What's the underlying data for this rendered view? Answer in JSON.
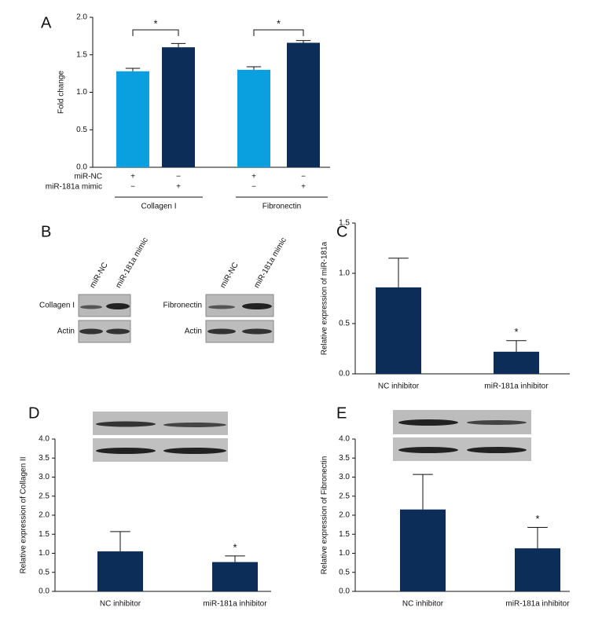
{
  "blots": {
    "label": "B",
    "lanes": [
      "miR-NC",
      "miR-181a mimic",
      "miR-NC",
      "miR-181a mimic"
    ],
    "rows": [
      "Collagen I",
      "Actin",
      "Fibronectin",
      "Actin"
    ]
  },
  "chart_data": [
    {
      "type": "bar",
      "label": "A",
      "ylabel": "Fold change",
      "categories": [
        null,
        null,
        null,
        null
      ],
      "values": [
        1.28,
        1.6,
        1.3,
        1.66
      ],
      "errors": [
        0.04,
        0.05,
        0.04,
        0.03
      ],
      "colors": [
        "#0aa0e0",
        "#0b2d57",
        "#0aa0e0",
        "#0b2d57"
      ],
      "ylim": [
        0,
        2
      ],
      "yticks": [
        {
          "value": 0,
          "label": "0.0"
        },
        {
          "value": 0.5,
          "label": "0.5"
        },
        {
          "value": 1,
          "label": "1.0"
        },
        {
          "value": 1.5,
          "label": "1.5"
        },
        {
          "value": 2,
          "label": "2.0"
        }
      ],
      "conditions": [
        {
          "name": "miR-NC",
          "signs": [
            "+",
            "−",
            "+",
            "−"
          ]
        },
        {
          "name": "miR-181a mimic",
          "signs": [
            "−",
            "+",
            "−",
            "+"
          ]
        }
      ],
      "groups": [
        "Collagen I",
        "Fibronectin"
      ],
      "significance": [
        "*",
        "*"
      ]
    },
    {
      "type": "bar",
      "label": "C",
      "ylabel": "Relative expression of miR-181a",
      "categories": [
        "NC inhibitor",
        "miR-181a inhibitor"
      ],
      "values": [
        0.86,
        0.22
      ],
      "errors": [
        0.29,
        0.11
      ],
      "color": "#0b2d57",
      "ylim": [
        0,
        1.5
      ],
      "yticks": [
        {
          "value": 0,
          "label": "0.0"
        },
        {
          "value": 0.5,
          "label": "0.5"
        },
        {
          "value": 1,
          "label": "1.0"
        },
        {
          "value": 1.5,
          "label": "1.5"
        }
      ],
      "significance": [
        null,
        "*"
      ]
    },
    {
      "type": "bar",
      "label": "D",
      "ylabel": "Relative expression of Collagen II",
      "categories": [
        "NC inhibitor",
        "miR-181a inhibitor"
      ],
      "values": [
        1.05,
        0.77
      ],
      "errors": [
        0.52,
        0.16
      ],
      "color": "#0b2d57",
      "ylim": [
        0,
        4
      ],
      "yticks": [
        {
          "value": 0,
          "label": "0.0"
        },
        {
          "value": 0.5,
          "label": "0.5"
        },
        {
          "value": 1,
          "label": "1.0"
        },
        {
          "value": 1.5,
          "label": "1.5"
        },
        {
          "value": 2,
          "label": "2.0"
        },
        {
          "value": 2.5,
          "label": "2.5"
        },
        {
          "value": 3,
          "label": "3.0"
        },
        {
          "value": 3.5,
          "label": "3.5"
        },
        {
          "value": 4,
          "label": "4.0"
        }
      ],
      "significance": [
        null,
        "*"
      ]
    },
    {
      "type": "bar",
      "label": "E",
      "ylabel": "Relative expression of Fibronectin",
      "categories": [
        "NC inhibitor",
        "miR-181a inhibitor"
      ],
      "values": [
        2.15,
        1.13
      ],
      "errors": [
        0.92,
        0.55
      ],
      "color": "#0b2d57",
      "ylim": [
        0,
        4
      ],
      "yticks": [
        {
          "value": 0,
          "label": "0.0"
        },
        {
          "value": 0.5,
          "label": "0.5"
        },
        {
          "value": 1,
          "label": "1.0"
        },
        {
          "value": 1.5,
          "label": "1.5"
        },
        {
          "value": 2,
          "label": "2.0"
        },
        {
          "value": 2.5,
          "label": "2.5"
        },
        {
          "value": 3,
          "label": "3.0"
        },
        {
          "value": 3.5,
          "label": "3.5"
        },
        {
          "value": 4,
          "label": "4.0"
        }
      ],
      "significance": [
        null,
        "*"
      ]
    }
  ]
}
